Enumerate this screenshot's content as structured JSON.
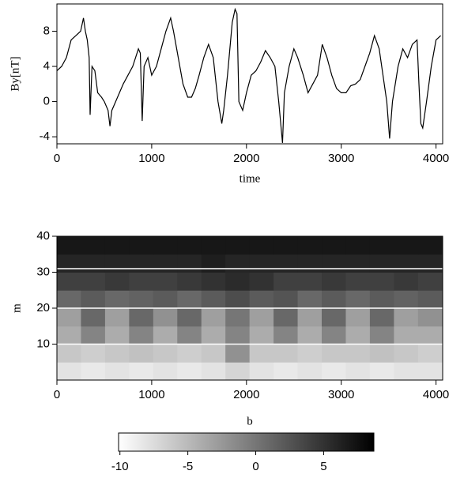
{
  "chart_data": [
    {
      "type": "line",
      "xlabel": "time",
      "ylabel": "By[nT]",
      "color": "#000000",
      "x": [
        0,
        50,
        100,
        150,
        200,
        250,
        280,
        300,
        320,
        340,
        350,
        370,
        400,
        430,
        470,
        500,
        540,
        560,
        580,
        620,
        700,
        800,
        860,
        880,
        900,
        920,
        960,
        1000,
        1050,
        1100,
        1150,
        1200,
        1230,
        1280,
        1330,
        1380,
        1420,
        1460,
        1500,
        1550,
        1600,
        1650,
        1700,
        1740,
        1760,
        1800,
        1850,
        1880,
        1900,
        1920,
        1960,
        2000,
        2050,
        2100,
        2150,
        2200,
        2250,
        2300,
        2340,
        2380,
        2400,
        2450,
        2500,
        2540,
        2600,
        2650,
        2700,
        2750,
        2800,
        2850,
        2900,
        2950,
        3000,
        3050,
        3100,
        3150,
        3200,
        3250,
        3300,
        3350,
        3400,
        3440,
        3480,
        3510,
        3540,
        3600,
        3650,
        3700,
        3750,
        3800,
        3820,
        3840,
        3860,
        3900,
        3950,
        4000,
        4050
      ],
      "values": [
        3.5,
        4,
        5,
        7,
        7.5,
        8,
        9.5,
        8,
        7,
        5,
        -1.5,
        4,
        3.5,
        1,
        0.5,
        0,
        -1,
        -2.8,
        -1,
        0,
        2,
        4,
        6,
        5.5,
        -2.2,
        4,
        5,
        3,
        4,
        6,
        8,
        9.5,
        8,
        5,
        2,
        0.5,
        0.5,
        1.5,
        3,
        5,
        6.5,
        5,
        0,
        -2.5,
        -1,
        3,
        9,
        10.5,
        10,
        0,
        -1,
        1,
        3,
        3.5,
        4.5,
        5.8,
        5,
        4,
        0,
        -4.7,
        1,
        4,
        6,
        5,
        3,
        1,
        2,
        3,
        6.5,
        5,
        3,
        1.5,
        1,
        1,
        1.8,
        2,
        2.5,
        4,
        5.5,
        7.5,
        6,
        3,
        0,
        -4.2,
        0,
        4,
        6,
        5,
        6.5,
        7,
        2,
        -2.5,
        -3,
        0,
        4,
        7,
        7.5
      ],
      "xlim": [
        0,
        4070
      ],
      "ylim": [
        -4.8,
        11.1
      ],
      "xticks": [
        0,
        1000,
        2000,
        3000,
        4000
      ],
      "yticks": [
        -4,
        0,
        4,
        8
      ]
    },
    {
      "type": "heatmap",
      "xlabel": "b",
      "ylabel": "m",
      "x_edges": [
        0,
        254,
        508,
        762,
        1016,
        1270,
        1524,
        1778,
        2032,
        2286,
        2540,
        2794,
        3048,
        3302,
        3556,
        3810,
        4064
      ],
      "y_edges": [
        0,
        5,
        10,
        15,
        20,
        25,
        30,
        35,
        40
      ],
      "z": [
        [
          -8,
          -8.5,
          -8,
          -8.5,
          -8,
          -8.5,
          -8,
          -7,
          -8,
          -8.5,
          -8,
          -8.5,
          -8,
          -8.5,
          -8,
          -8
        ],
        [
          -6,
          -6.5,
          -6,
          -5.5,
          -6,
          -6.5,
          -6,
          -2,
          -6,
          -6,
          -6.5,
          -6,
          -6,
          -5.5,
          -6,
          -6.5
        ],
        [
          -4,
          -1,
          -4,
          -1,
          -4,
          -1,
          -4,
          -1,
          -4,
          -1,
          -4,
          -1,
          -4,
          -1,
          -4,
          -4
        ],
        [
          -3,
          1,
          -3,
          1,
          -2,
          1,
          -3,
          0,
          -3,
          1,
          -3,
          1,
          -3,
          1,
          -3,
          -2
        ],
        [
          1,
          2,
          1,
          1.5,
          2,
          1,
          2,
          3,
          2,
          2.5,
          1,
          2,
          1,
          2,
          1.5,
          2
        ],
        [
          4,
          4,
          4.5,
          4,
          4,
          4.5,
          5,
          5.5,
          5,
          4,
          4,
          4.5,
          4,
          4,
          4.5,
          4
        ],
        [
          6,
          6,
          6,
          6,
          6,
          6,
          6.5,
          6,
          6,
          6,
          6,
          6,
          6,
          6,
          6,
          6
        ],
        [
          7,
          7,
          7,
          7,
          7,
          7,
          7,
          7,
          7,
          7,
          7,
          7,
          7,
          7,
          7,
          7
        ]
      ],
      "xlim": [
        0,
        4070
      ],
      "ylim": [
        0,
        40
      ],
      "xticks": [
        0,
        1000,
        2000,
        3000,
        4000
      ],
      "yticks": [
        10,
        20,
        30,
        40
      ],
      "hlines": [
        10,
        20,
        31
      ],
      "hline_color": "#ffffff",
      "colormap": [
        "#ffffff",
        "#000000"
      ],
      "clim": [
        -10.1,
        8.7
      ],
      "cticks": [
        -10,
        -5,
        0,
        5
      ]
    }
  ]
}
